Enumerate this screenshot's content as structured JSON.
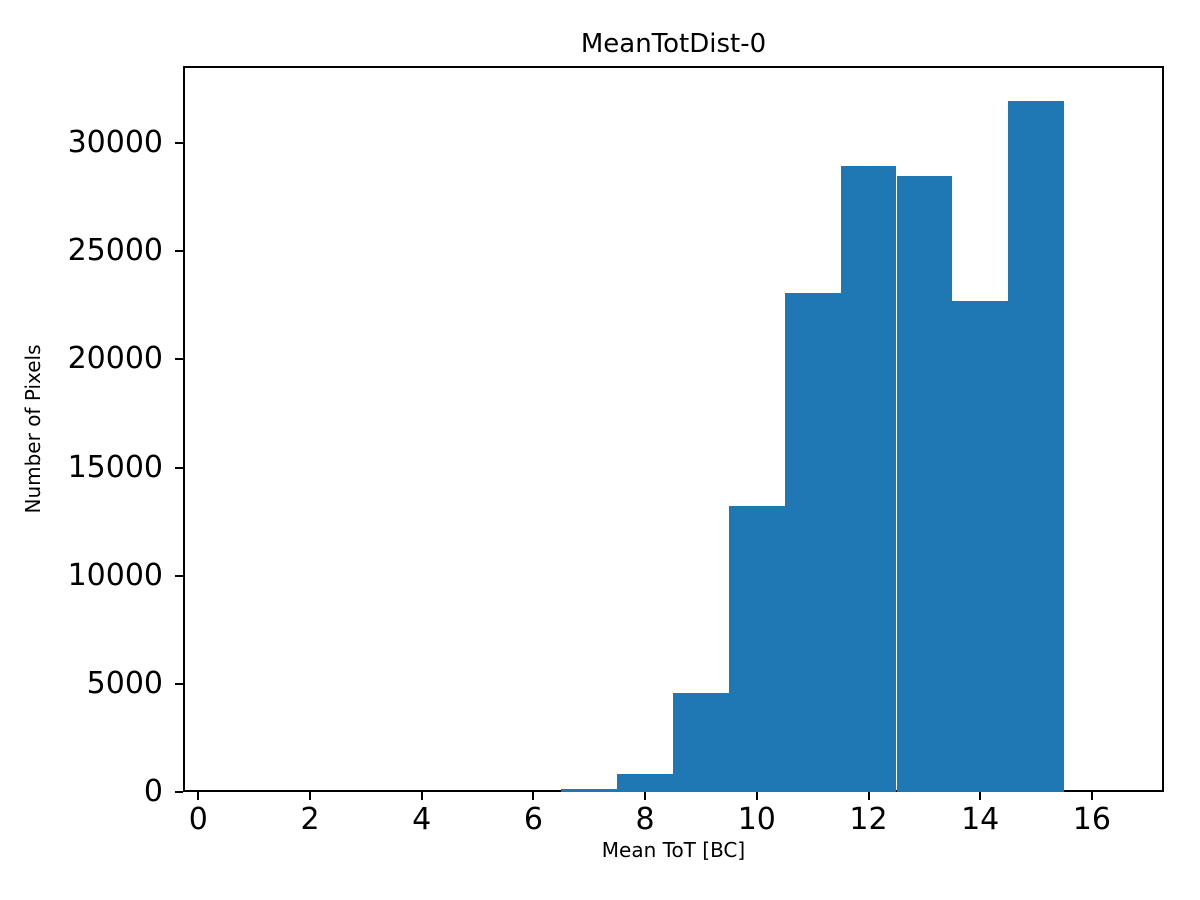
{
  "chart_data": {
    "type": "bar",
    "subtype": "histogram",
    "title": "MeanTotDist-0",
    "xlabel": "Mean ToT [BC]",
    "ylabel": "Number of Pixels",
    "bin_edges": [
      6.5,
      7.5,
      8.5,
      9.5,
      10.5,
      11.5,
      12.5,
      13.5,
      14.5,
      15.5
    ],
    "values": [
      160,
      830,
      4560,
      13220,
      23060,
      28950,
      28470,
      22710,
      31940
    ],
    "xticks": [
      0,
      2,
      4,
      6,
      8,
      10,
      12,
      14,
      16
    ],
    "yticks": [
      0,
      5000,
      10000,
      15000,
      20000,
      25000,
      30000
    ],
    "xlim": [
      -0.274,
      17.29
    ],
    "ylim": [
      0,
      33560
    ],
    "bar_color": "#1f77b4",
    "text_color": "#000000",
    "background_color": "#ffffff",
    "grid": false,
    "legend": null
  }
}
